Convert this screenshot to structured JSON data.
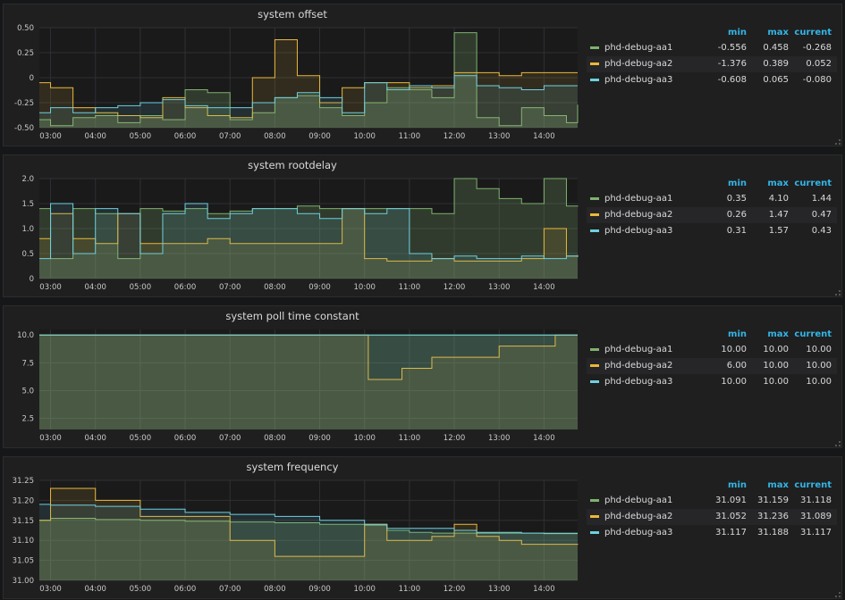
{
  "time_labels": [
    "03:00",
    "04:00",
    "05:00",
    "06:00",
    "07:00",
    "08:00",
    "09:00",
    "10:00",
    "11:00",
    "12:00",
    "13:00",
    "14:00"
  ],
  "colors": {
    "aa1": "#7eb26d",
    "aa2": "#eab839",
    "aa3": "#6ed0e0",
    "legend_header": "#33b5e5"
  },
  "legend_headers": {
    "min": "min",
    "max": "max",
    "current": "current"
  },
  "panels": [
    {
      "title": "system offset",
      "yticks": [
        "0.50",
        "0.25",
        "0",
        "-0.25",
        "-0.50"
      ],
      "ylim": [
        -0.5,
        0.5
      ],
      "legend": [
        {
          "name": "phd-debug-aa1",
          "min": "-0.556",
          "max": "0.458",
          "current": "-0.268"
        },
        {
          "name": "phd-debug-aa2",
          "min": "-1.376",
          "max": "0.389",
          "current": "0.052"
        },
        {
          "name": "phd-debug-aa3",
          "min": "-0.608",
          "max": "0.065",
          "current": "-0.080"
        }
      ]
    },
    {
      "title": "system rootdelay",
      "yticks": [
        "2.0",
        "1.5",
        "1.0",
        "0.5",
        "0"
      ],
      "ylim": [
        0,
        2
      ],
      "legend": [
        {
          "name": "phd-debug-aa1",
          "min": "0.35",
          "max": "4.10",
          "current": "1.44"
        },
        {
          "name": "phd-debug-aa2",
          "min": "0.26",
          "max": "1.47",
          "current": "0.47"
        },
        {
          "name": "phd-debug-aa3",
          "min": "0.31",
          "max": "1.57",
          "current": "0.43"
        }
      ]
    },
    {
      "title": "system poll time constant",
      "yticks": [
        "10.0",
        "7.5",
        "5.0",
        "2.5"
      ],
      "ylim": [
        1.5,
        10.5
      ],
      "legend": [
        {
          "name": "phd-debug-aa1",
          "min": "10.00",
          "max": "10.00",
          "current": "10.00"
        },
        {
          "name": "phd-debug-aa2",
          "min": "6.00",
          "max": "10.00",
          "current": "10.00"
        },
        {
          "name": "phd-debug-aa3",
          "min": "10.00",
          "max": "10.00",
          "current": "10.00"
        }
      ]
    },
    {
      "title": "system frequency",
      "yticks": [
        "31.25",
        "31.20",
        "31.15",
        "31.10",
        "31.05",
        "31.00"
      ],
      "ylim": [
        31.0,
        31.25
      ],
      "legend": [
        {
          "name": "phd-debug-aa1",
          "min": "31.091",
          "max": "31.159",
          "current": "31.118"
        },
        {
          "name": "phd-debug-aa2",
          "min": "31.052",
          "max": "31.236",
          "current": "31.089"
        },
        {
          "name": "phd-debug-aa3",
          "min": "31.117",
          "max": "31.188",
          "current": "31.117"
        }
      ]
    }
  ],
  "chart_data": [
    {
      "type": "line",
      "title": "system offset",
      "ylim": [
        -0.5,
        0.5
      ],
      "x": [
        "02:45",
        "03:00",
        "03:30",
        "04:00",
        "04:30",
        "05:00",
        "05:30",
        "06:00",
        "06:30",
        "07:00",
        "07:30",
        "08:00",
        "08:30",
        "09:00",
        "09:30",
        "10:00",
        "10:30",
        "11:00",
        "11:30",
        "12:00",
        "12:30",
        "13:00",
        "13:30",
        "14:00",
        "14:30",
        "14:45"
      ],
      "series": [
        {
          "name": "phd-debug-aa1",
          "values": [
            -0.42,
            -0.48,
            -0.4,
            -0.38,
            -0.45,
            -0.38,
            -0.42,
            -0.12,
            -0.15,
            -0.42,
            -0.35,
            -0.2,
            -0.18,
            -0.3,
            -0.38,
            -0.25,
            -0.1,
            -0.12,
            -0.2,
            0.45,
            -0.4,
            -0.48,
            -0.3,
            -0.38,
            -0.45,
            -0.27
          ]
        },
        {
          "name": "phd-debug-aa2",
          "values": [
            -0.05,
            -0.1,
            -0.3,
            -0.35,
            -0.38,
            -0.4,
            -0.2,
            -0.3,
            -0.38,
            -0.4,
            0.0,
            0.38,
            0.02,
            -0.25,
            -0.1,
            -0.05,
            -0.05,
            -0.1,
            -0.08,
            0.05,
            0.05,
            0.02,
            0.05,
            0.05,
            0.05,
            0.05
          ]
        },
        {
          "name": "phd-debug-aa3",
          "values": [
            -0.35,
            -0.3,
            -0.35,
            -0.3,
            -0.28,
            -0.25,
            -0.22,
            -0.28,
            -0.3,
            -0.3,
            -0.25,
            -0.2,
            -0.15,
            -0.2,
            -0.35,
            -0.05,
            -0.12,
            -0.08,
            -0.1,
            0.02,
            -0.08,
            -0.1,
            -0.12,
            -0.08,
            -0.08,
            -0.08
          ]
        }
      ]
    },
    {
      "type": "line",
      "title": "system rootdelay",
      "ylim": [
        0,
        2
      ],
      "x": [
        "02:45",
        "03:00",
        "03:30",
        "04:00",
        "04:30",
        "05:00",
        "05:30",
        "06:00",
        "06:30",
        "07:00",
        "07:30",
        "08:00",
        "08:30",
        "09:00",
        "09:30",
        "10:00",
        "10:30",
        "11:00",
        "11:30",
        "12:00",
        "12:30",
        "13:00",
        "13:30",
        "14:00",
        "14:30",
        "14:45"
      ],
      "series": [
        {
          "name": "phd-debug-aa1",
          "values": [
            1.4,
            0.4,
            1.4,
            1.3,
            0.4,
            1.4,
            1.35,
            1.4,
            1.3,
            1.35,
            1.4,
            1.4,
            1.45,
            1.4,
            1.4,
            1.4,
            1.4,
            1.4,
            1.3,
            2.0,
            1.8,
            1.6,
            1.5,
            2.0,
            1.45,
            1.44
          ]
        },
        {
          "name": "phd-debug-aa2",
          "values": [
            0.8,
            1.3,
            0.8,
            0.7,
            1.3,
            0.7,
            0.7,
            0.7,
            0.8,
            0.7,
            0.7,
            0.7,
            0.7,
            0.7,
            1.4,
            0.4,
            0.35,
            0.35,
            0.4,
            0.35,
            0.35,
            0.35,
            0.4,
            1.0,
            0.45,
            0.47
          ]
        },
        {
          "name": "phd-debug-aa3",
          "values": [
            0.4,
            1.5,
            0.5,
            1.4,
            1.3,
            0.5,
            1.3,
            1.5,
            1.2,
            1.3,
            1.4,
            1.4,
            1.3,
            1.2,
            1.4,
            1.3,
            1.4,
            0.5,
            0.4,
            0.45,
            0.4,
            0.4,
            0.45,
            0.4,
            0.45,
            0.43
          ]
        }
      ]
    },
    {
      "type": "line",
      "title": "system poll time constant",
      "ylim": [
        1.5,
        10.5
      ],
      "x": [
        "02:45",
        "10:00",
        "10:05",
        "10:50",
        "11:30",
        "12:00",
        "13:00",
        "14:00",
        "14:15",
        "14:45"
      ],
      "series": [
        {
          "name": "phd-debug-aa1",
          "values": [
            10,
            10,
            10,
            10,
            10,
            10,
            10,
            10,
            10,
            10
          ]
        },
        {
          "name": "phd-debug-aa2",
          "values": [
            10,
            10,
            6,
            7,
            8,
            8,
            9,
            9,
            10,
            10
          ]
        },
        {
          "name": "phd-debug-aa3",
          "values": [
            10,
            10,
            10,
            10,
            10,
            10,
            10,
            10,
            10,
            10
          ]
        }
      ]
    },
    {
      "type": "line",
      "title": "system frequency",
      "ylim": [
        31.0,
        31.25
      ],
      "x": [
        "02:45",
        "03:00",
        "04:00",
        "05:00",
        "06:00",
        "07:00",
        "08:00",
        "09:00",
        "10:00",
        "10:30",
        "11:00",
        "11:30",
        "12:00",
        "12:30",
        "13:00",
        "13:30",
        "14:00",
        "14:45"
      ],
      "series": [
        {
          "name": "phd-debug-aa1",
          "values": [
            31.15,
            31.155,
            31.152,
            31.15,
            31.148,
            31.146,
            31.144,
            31.14,
            31.138,
            31.125,
            31.12,
            31.118,
            31.118,
            31.118,
            31.118,
            31.118,
            31.118,
            31.118
          ]
        },
        {
          "name": "phd-debug-aa2",
          "values": [
            31.15,
            31.23,
            31.2,
            31.16,
            31.16,
            31.1,
            31.06,
            31.06,
            31.14,
            31.1,
            31.1,
            31.11,
            31.14,
            31.11,
            31.1,
            31.09,
            31.09,
            31.089
          ]
        },
        {
          "name": "phd-debug-aa3",
          "values": [
            31.19,
            31.188,
            31.185,
            31.178,
            31.17,
            31.165,
            31.16,
            31.15,
            31.14,
            31.13,
            31.13,
            31.13,
            31.125,
            31.12,
            31.12,
            31.118,
            31.117,
            31.117
          ]
        }
      ]
    }
  ]
}
